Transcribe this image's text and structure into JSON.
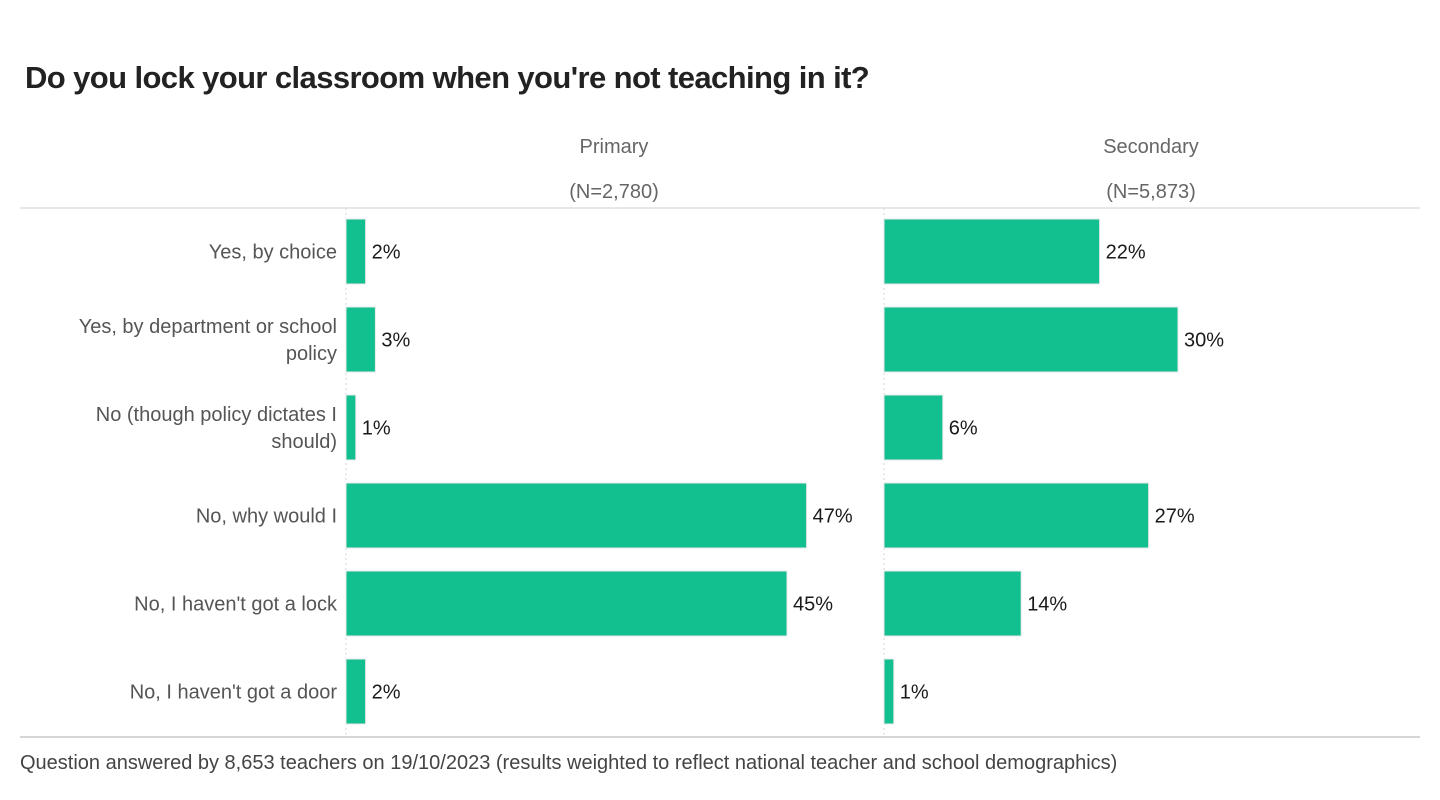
{
  "chart_data": {
    "type": "bar",
    "orientation": "horizontal",
    "title": "Do you lock your classroom when you're not teaching in it?",
    "categories": [
      [
        "Yes, by choice"
      ],
      [
        "Yes, by department or school",
        "policy"
      ],
      [
        "No (though policy dictates I",
        "should)"
      ],
      [
        "No, why would I"
      ],
      [
        "No, I haven't got a lock"
      ],
      [
        "No, I haven't got a door"
      ]
    ],
    "series": [
      {
        "name": "Primary",
        "subtitle": "(N=2,780)",
        "values": [
          2,
          3,
          1,
          47,
          45,
          2
        ]
      },
      {
        "name": "Secondary",
        "subtitle": "(N=5,873)",
        "values": [
          22,
          30,
          6,
          27,
          14,
          1
        ]
      }
    ],
    "value_suffix": "%",
    "xlim": [
      0,
      55
    ],
    "color": "#12bf8e",
    "footnote": "Question answered by 8,653 teachers on 19/10/2023 (results weighted to reflect national teacher and school demographics)"
  }
}
